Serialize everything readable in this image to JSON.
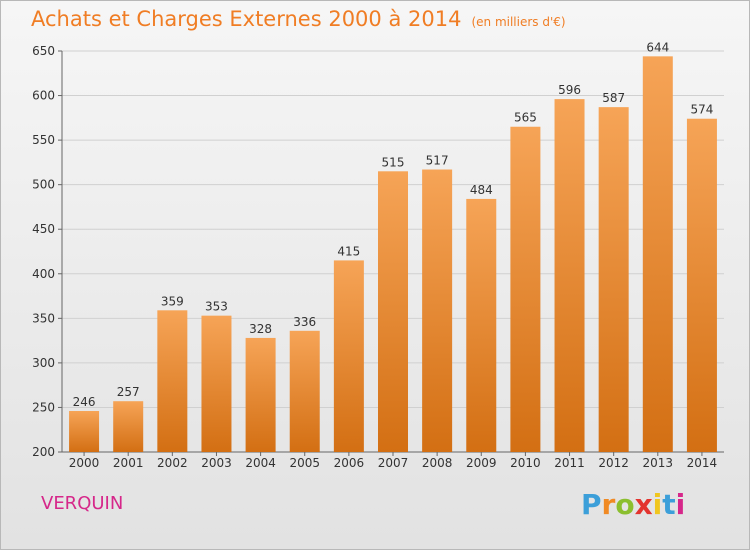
{
  "title": "Achats et Charges Externes 2000 à 2014",
  "unit_note": "(en milliers d'€)",
  "commune": "VERQUIN",
  "logo": {
    "text": "Proxiti"
  },
  "colors": {
    "bar_top": "#f6a457",
    "bar_bottom": "#d36f13",
    "title": "#f07d24",
    "commune": "#d6278a"
  },
  "chart_data": {
    "type": "bar",
    "title": "Achats et Charges Externes 2000 à 2014",
    "subtitle": "(en milliers d'€)",
    "xlabel": "",
    "ylabel": "",
    "ylim": [
      200,
      650
    ],
    "yticks": [
      200,
      250,
      300,
      350,
      400,
      450,
      500,
      550,
      600,
      650
    ],
    "grid": true,
    "categories": [
      "2000",
      "2001",
      "2002",
      "2003",
      "2004",
      "2005",
      "2006",
      "2007",
      "2008",
      "2009",
      "2010",
      "2011",
      "2012",
      "2013",
      "2014"
    ],
    "values": [
      246,
      257,
      359,
      353,
      328,
      336,
      415,
      515,
      517,
      484,
      565,
      596,
      587,
      644,
      574
    ]
  }
}
